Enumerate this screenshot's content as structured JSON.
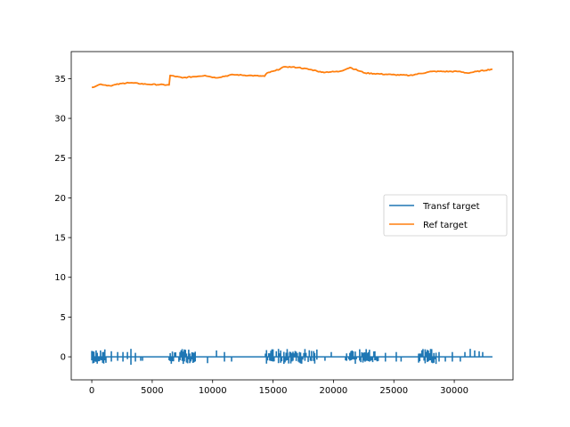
{
  "chart_data": {
    "type": "line",
    "title": "",
    "xlabel": "",
    "ylabel": "",
    "xlim": [
      -1700,
      34860
    ],
    "ylim": [
      -2.9,
      38.4
    ],
    "grid": false,
    "legend_placement": "center-right",
    "xticks": [
      0,
      5000,
      10000,
      15000,
      20000,
      25000,
      30000
    ],
    "xtick_labels": [
      "0",
      "5000",
      "10000",
      "15000",
      "20000",
      "25000",
      "30000"
    ],
    "yticks": [
      0,
      5,
      10,
      15,
      20,
      25,
      30,
      35
    ],
    "ytick_labels": [
      "0",
      "5",
      "10",
      "15",
      "20",
      "25",
      "30",
      "35"
    ],
    "series": [
      {
        "name": "Transf target",
        "color": "#1f77b4",
        "baseline": 0,
        "x_end": 33160,
        "dense_segments": [
          [
            0,
            1250
          ],
          [
            6400,
            8600
          ],
          [
            14370,
            16200
          ],
          [
            16200,
            18700
          ],
          [
            21000,
            23700
          ],
          [
            27050,
            28500
          ]
        ],
        "spikes": [
          [
            1620,
            -0.6,
            0.7
          ],
          [
            2140,
            -0.5,
            0.6
          ],
          [
            2580,
            -0.6,
            0.6
          ],
          [
            2950,
            -0.3,
            0.6
          ],
          [
            3240,
            -1.0,
            1.0
          ],
          [
            3610,
            -0.6,
            0.5
          ],
          [
            4050,
            -0.5,
            0
          ],
          [
            4200,
            -0.5,
            0
          ],
          [
            9580,
            -0.8,
            0
          ],
          [
            10320,
            0,
            0.8
          ],
          [
            10980,
            -0.6,
            0.6
          ],
          [
            11570,
            -0.6,
            0
          ],
          [
            19300,
            -0.5,
            0
          ],
          [
            19820,
            0,
            0.6
          ],
          [
            24300,
            -0.6,
            0.5
          ],
          [
            25200,
            -0.6,
            0.6
          ],
          [
            25600,
            -0.6,
            0
          ],
          [
            28740,
            -0.6,
            0.6
          ],
          [
            29260,
            -0.6,
            0
          ],
          [
            29840,
            -0.6,
            0.6
          ],
          [
            30500,
            -0.6,
            0
          ],
          [
            30880,
            0,
            0.6
          ],
          [
            31320,
            0,
            1.0
          ],
          [
            31690,
            0,
            0.8
          ],
          [
            32060,
            0,
            0.7
          ],
          [
            32350,
            0,
            0.6
          ]
        ]
      },
      {
        "name": "Ref target",
        "color": "#ff7f0e",
        "x": [
          0,
          740,
          1500,
          2950,
          4500,
          6400,
          6480,
          7500,
          9360,
          10250,
          11700,
          13000,
          14300,
          14500,
          15200,
          16000,
          17100,
          18570,
          19000,
          20500,
          21370,
          22620,
          24830,
          26300,
          28150,
          30360,
          31100,
          33160
        ],
        "y": [
          33.9,
          34.3,
          34.1,
          34.5,
          34.3,
          34.2,
          35.4,
          35.1,
          35.4,
          35.1,
          35.5,
          35.4,
          35.3,
          35.7,
          36.0,
          36.5,
          36.4,
          36.0,
          35.8,
          35.9,
          36.4,
          35.7,
          35.5,
          35.4,
          35.9,
          35.9,
          35.7,
          36.2
        ]
      }
    ]
  }
}
